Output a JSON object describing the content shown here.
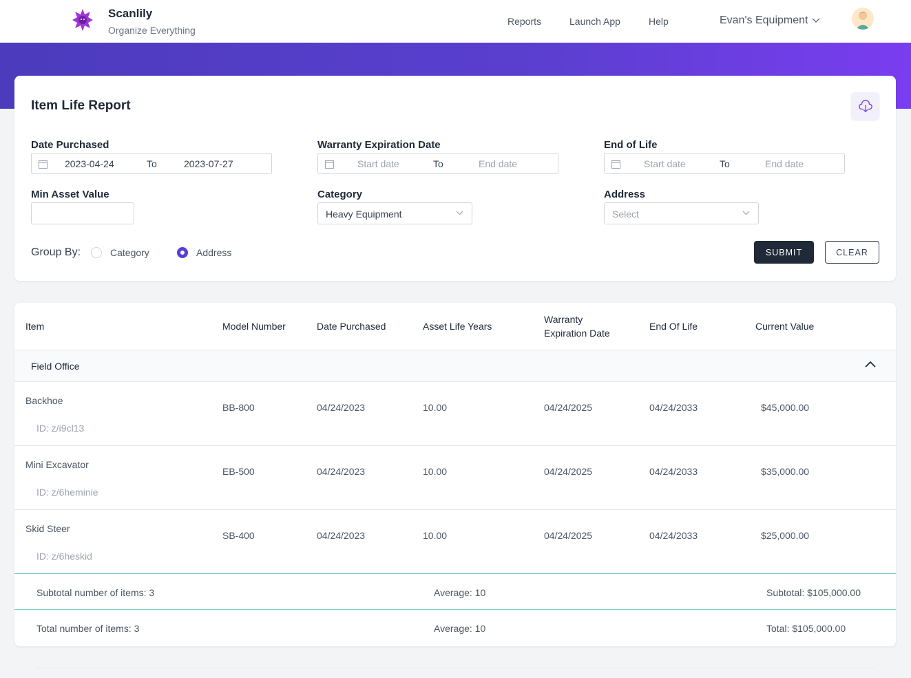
{
  "header": {
    "brand_name": "Scanlily",
    "brand_tagline": "Organize Everything",
    "nav": [
      "Reports",
      "Launch App",
      "Help"
    ],
    "org_name": "Evan's Equipment"
  },
  "report": {
    "title": "Item Life Report",
    "date_purchased": {
      "label": "Date Purchased",
      "from": "2023-04-24",
      "to_label": "To",
      "until": "2023-07-27"
    },
    "warranty": {
      "label": "Warranty Expiration Date",
      "from_placeholder": "Start date",
      "to_label": "To",
      "until_placeholder": "End date"
    },
    "end_of_life": {
      "label": "End of Life",
      "from_placeholder": "Start date",
      "to_label": "To",
      "until_placeholder": "End date"
    },
    "min_asset_value": {
      "label": "Min Asset Value",
      "value": ""
    },
    "category": {
      "label": "Category",
      "value": "Heavy Equipment"
    },
    "address": {
      "label": "Address",
      "placeholder": "Select"
    },
    "group_by": {
      "label": "Group By:",
      "options": [
        "Category",
        "Address"
      ],
      "selected": "Address"
    },
    "submit_label": "SUBMIT",
    "clear_label": "CLEAR"
  },
  "table": {
    "columns": [
      "Item",
      "Model Number",
      "Date Purchased",
      "Asset Life Years",
      "Warranty Expiration Date",
      "End Of Life",
      "Current Value"
    ],
    "group": "Field Office",
    "rows": [
      {
        "item": "Backhoe",
        "id": "ID: z/i9cl13",
        "model": "BB-800",
        "purchased": "04/24/2023",
        "life_years": "10.00",
        "warranty": "04/24/2025",
        "end_of_life": "04/24/2033",
        "value": "$45,000.00"
      },
      {
        "item": "Mini Excavator",
        "id": "ID: z/6heminie",
        "model": "EB-500",
        "purchased": "04/24/2023",
        "life_years": "10.00",
        "warranty": "04/24/2025",
        "end_of_life": "04/24/2033",
        "value": "$35,000.00"
      },
      {
        "item": "Skid Steer",
        "id": "ID: z/6heskid",
        "model": "SB-400",
        "purchased": "04/24/2023",
        "life_years": "10.00",
        "warranty": "04/24/2025",
        "end_of_life": "04/24/2033",
        "value": "$25,000.00"
      }
    ],
    "subtotal": {
      "count": "Subtotal number of items: 3",
      "average": "Average: 10",
      "total": "Subtotal: $105,000.00"
    },
    "total": {
      "count": "Total number of items: 3",
      "average": "Average: 10",
      "total": "Total: $105,000.00"
    }
  },
  "colors": {
    "accent": "#5b3fd0",
    "dark": "#1f2937",
    "divider": "#5bc0c8"
  }
}
